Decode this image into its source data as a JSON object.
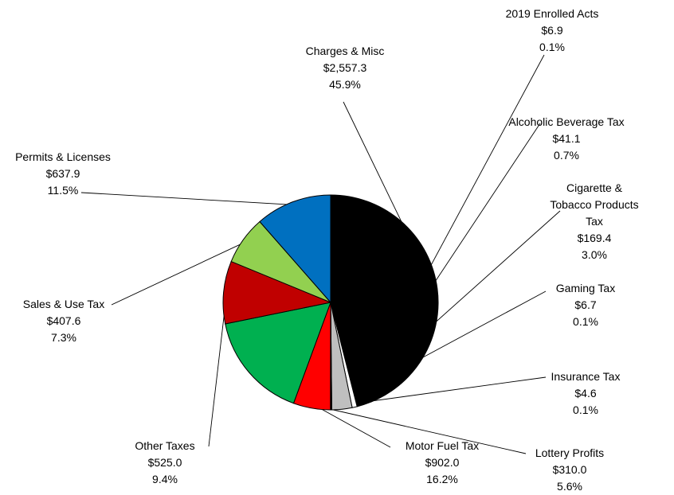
{
  "chart_data": {
    "type": "pie",
    "slices": [
      {
        "label": "Charges & Misc",
        "value_text": "$2,557.3",
        "percent_text": "45.9%",
        "value": 2557.3,
        "percent": 45.9,
        "color": "#000000"
      },
      {
        "label": "2019 Enrolled Acts",
        "value_text": "$6.9",
        "percent_text": "0.1%",
        "value": 6.9,
        "percent": 0.1,
        "color": "#ffffff"
      },
      {
        "label": "Alcoholic Beverage Tax",
        "value_text": "$41.1",
        "percent_text": "0.7%",
        "value": 41.1,
        "percent": 0.7,
        "color": "#ffffff"
      },
      {
        "label": "Cigarette & Tobacco Products Tax",
        "label_lines": [
          "Cigarette &",
          "Tobacco Products",
          "Tax"
        ],
        "value_text": "$169.4",
        "percent_text": "3.0%",
        "value": 169.4,
        "percent": 3.0,
        "color": "#bfbfbf"
      },
      {
        "label": "Gaming Tax",
        "value_text": "$6.7",
        "percent_text": "0.1%",
        "value": 6.7,
        "percent": 0.1,
        "color": "#ffffff"
      },
      {
        "label": "Insurance Tax",
        "value_text": "$4.6",
        "percent_text": "0.1%",
        "value": 4.6,
        "percent": 0.1,
        "color": "#ffffff"
      },
      {
        "label": "Lottery Profits",
        "value_text": "$310.0",
        "percent_text": "5.6%",
        "value": 310.0,
        "percent": 5.6,
        "color": "#ff0000"
      },
      {
        "label": "Motor Fuel Tax",
        "value_text": "$902.0",
        "percent_text": "16.2%",
        "value": 902.0,
        "percent": 16.2,
        "color": "#00b050"
      },
      {
        "label": "Other Taxes",
        "value_text": "$525.0",
        "percent_text": "9.4%",
        "value": 525.0,
        "percent": 9.4,
        "color": "#c00000"
      },
      {
        "label": "Sales & Use Tax",
        "value_text": "$407.6",
        "percent_text": "7.3%",
        "value": 407.6,
        "percent": 7.3,
        "color": "#92d050"
      },
      {
        "label": "Permits & Licenses",
        "value_text": "$637.9",
        "percent_text": "11.5%",
        "value": 637.9,
        "percent": 11.5,
        "color": "#0070c0"
      }
    ]
  }
}
